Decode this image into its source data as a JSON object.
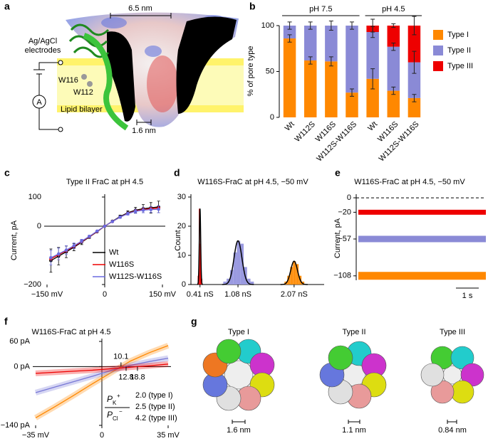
{
  "figure": {
    "panel_labels": [
      "a",
      "b",
      "c",
      "d",
      "e",
      "f",
      "g"
    ],
    "panel_a": {
      "scale_top": "6.5 nm",
      "electrode_label": [
        "Ag/AgCl",
        "electrodes"
      ],
      "ammeter": "A",
      "residues": [
        "W116",
        "W112"
      ],
      "membrane": "Lipid bilayer",
      "scale_bottom": "1.6 nm"
    },
    "panel_g": {
      "titles": [
        "Type I",
        "Type II",
        "Type III"
      ],
      "scale_bars": [
        "1.6 nm",
        "1.1 nm",
        "0.84 nm"
      ]
    }
  },
  "chart_data": [
    {
      "type": "stacked_bar",
      "ylabel": "% of pore type",
      "groups": [
        {
          "label": "pH 7.5",
          "categories": [
            "Wt",
            "W112S",
            "W116S",
            "W112S-W116S"
          ]
        },
        {
          "label": "pH 4.5",
          "categories": [
            "Wt",
            "W116S",
            "W112S-W116S"
          ]
        }
      ],
      "series": [
        {
          "name": "Type I",
          "color": "#ff8800",
          "values": [
            86,
            62,
            61,
            27,
            42,
            29,
            21
          ],
          "errors": [
            4,
            4,
            5,
            4,
            11,
            4,
            4
          ]
        },
        {
          "name": "Type II",
          "color": "#8a8ad6",
          "values": [
            14,
            38,
            39,
            73,
            51,
            48,
            39
          ],
          "errors": [
            4,
            4,
            5,
            4,
            6,
            4,
            12
          ]
        },
        {
          "name": "Type III",
          "color": "#ee0000",
          "values": [
            0,
            0,
            0,
            0,
            7,
            23,
            40
          ],
          "errors": [
            null,
            null,
            null,
            null,
            7,
            2,
            10
          ]
        }
      ],
      "ylim": [
        0,
        100
      ],
      "yticks": [
        0,
        50,
        100
      ],
      "legend": "right"
    },
    {
      "type": "line",
      "title": "Type II FraC at pH 4.5",
      "ylabel": "Current, pA",
      "x": [
        -140,
        -120,
        -100,
        -80,
        -60,
        -40,
        -20,
        0,
        20,
        40,
        60,
        80,
        100,
        120,
        140
      ],
      "series": [
        {
          "name": "Wt",
          "color": "#000000",
          "values": [
            -118,
            -103,
            -88,
            -72,
            -55,
            -37,
            -19,
            0,
            17,
            33,
            46,
            55,
            60,
            63,
            66
          ],
          "errors": [
            40,
            30,
            20,
            12,
            8,
            5,
            3,
            0,
            3,
            5,
            7,
            10,
            14,
            18,
            20
          ]
        },
        {
          "name": "W116S",
          "color": "#ee0000",
          "values": [
            -112,
            -98,
            -84,
            -69,
            -53,
            -36,
            -18,
            0,
            16,
            31,
            44,
            52,
            57,
            60,
            62
          ]
        },
        {
          "name": "W112S-W116S",
          "color": "#6a6ae0",
          "values": [
            -108,
            -95,
            -82,
            -67,
            -51,
            -35,
            -17,
            0,
            16,
            31,
            43,
            51,
            55,
            57,
            58
          ],
          "errors": [
            25,
            20,
            15,
            10,
            6,
            4,
            2,
            0,
            2,
            4,
            5,
            7,
            9,
            10,
            12
          ]
        }
      ],
      "xlim": [
        -150,
        150
      ],
      "xticks": [
        {
          "value": -150,
          "label": "−150 mV"
        },
        0,
        {
          "value": 150,
          "label": "150 mV"
        }
      ],
      "ylim": [
        -200,
        100
      ],
      "yticks": [
        {
          "value": -200,
          "label": "−200"
        },
        0,
        100
      ],
      "marker": "circle",
      "legend": "lower right"
    },
    {
      "type": "histogram",
      "title": "W116S-FraC at pH 4.5, −50 mV",
      "ylabel": "Count",
      "series": [
        {
          "color": "#ee0000",
          "bins": [
            0.37,
            0.39,
            0.41,
            0.43,
            0.45
          ],
          "values": [
            3,
            26,
            14,
            2
          ]
        },
        {
          "color": "#9a9ae0",
          "bins": [
            0.82,
            0.88,
            0.94,
            1.0,
            1.06,
            1.12,
            1.18,
            1.24,
            1.3,
            1.36
          ],
          "values": [
            1,
            2,
            5,
            11,
            15,
            14,
            6,
            2,
            1
          ]
        },
        {
          "color": "#ff9010",
          "bins": [
            1.9,
            1.95,
            2.0,
            2.05,
            2.1,
            2.15,
            2.2,
            2.25
          ],
          "values": [
            1,
            3,
            6,
            8,
            7,
            3,
            1
          ]
        }
      ],
      "fits": [
        {
          "mean": 0.41,
          "sd": 0.012,
          "amplitude": 26
        },
        {
          "mean": 1.08,
          "sd": 0.07,
          "amplitude": 15
        },
        {
          "mean": 2.07,
          "sd": 0.06,
          "amplitude": 8
        }
      ],
      "xlim": [
        0.25,
        2.6
      ],
      "xticks": [
        {
          "value": 0.41,
          "label": "0.41 nS"
        },
        {
          "value": 1.08,
          "label": "1.08 nS"
        },
        {
          "value": 2.07,
          "label": "2.07 nS"
        }
      ],
      "ylim": [
        0,
        30
      ],
      "yticks": [
        0,
        10,
        20,
        30
      ]
    },
    {
      "type": "trace",
      "title": "W116S-FraC at pH 4.5, −50 mV",
      "ylabel": "Current, pA",
      "series": [
        {
          "color": "#ee0000",
          "values": [
            -20
          ]
        },
        {
          "color": "#8a8ad6",
          "values": [
            -57
          ]
        },
        {
          "color": "#ff8800",
          "values": [
            -108
          ]
        }
      ],
      "ylim": [
        -120,
        5
      ],
      "yticks": [
        0,
        {
          "value": -20,
          "label": "−20"
        },
        {
          "value": -57,
          "label": "−57"
        },
        {
          "value": -108,
          "label": "−108"
        }
      ],
      "scale_bar": "1 s"
    },
    {
      "type": "line",
      "title": "W116S-FraC at pH 4.5",
      "x": [
        -35,
        -25,
        -15,
        -5,
        5,
        15,
        25,
        35
      ],
      "series": [
        {
          "color": "#ff8800",
          "values": [
            -122,
            -96,
            -69,
            -41,
            -14,
            13,
            33,
            50
          ]
        },
        {
          "color": "#7777d6",
          "values": [
            -62,
            -49,
            -36,
            -23,
            -9,
            3,
            12,
            20
          ]
        },
        {
          "color": "#ee0000",
          "values": [
            -16,
            -13.5,
            -11,
            -8.5,
            -5,
            -1.5,
            2,
            6
          ]
        }
      ],
      "xlim": [
        -35,
        35
      ],
      "xticks": [
        {
          "value": -35,
          "label": "−35 mV"
        },
        0,
        {
          "value": 35,
          "label": "35 mV"
        }
      ],
      "ylim": [
        -140,
        60
      ],
      "yticks": [
        {
          "value": -140,
          "label": "−140 pA"
        },
        {
          "value": 0,
          "label": "0 pA"
        },
        {
          "value": 60,
          "label": "60 pA"
        }
      ],
      "band": true,
      "reversal_potentials": [
        10.1,
        12.8,
        18.8
      ],
      "ratio_label": {
        "symbol": "P",
        "cation": "K",
        "cation_charge": "+",
        "anion": "Cl",
        "anion_charge": "−"
      },
      "ratios": [
        "2.0 (type I)",
        "2.5 (type II)",
        "4.2 (type III)"
      ]
    }
  ]
}
